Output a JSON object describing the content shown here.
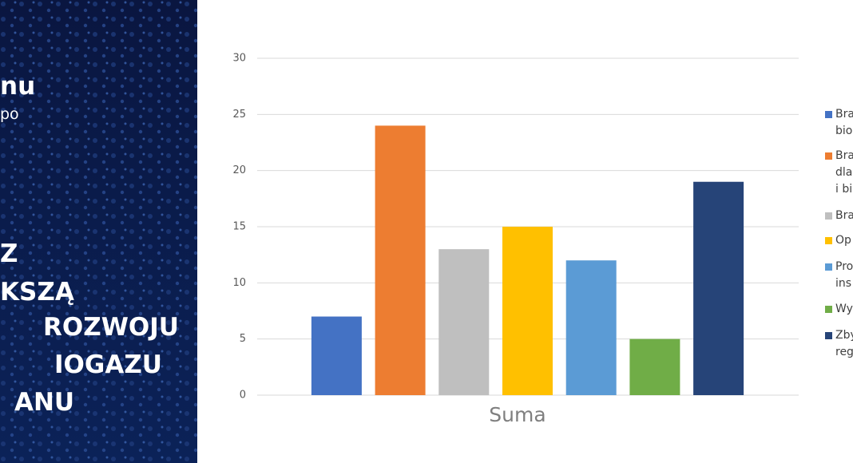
{
  "panel": {
    "lines": [
      "nu",
      "po",
      "Z",
      "KSZĄ",
      "ROZWOJU",
      "IOGAZU",
      "ANU"
    ]
  },
  "chart_data": {
    "type": "bar",
    "categories": [
      "Suma"
    ],
    "x_label": "Suma",
    "ylim": [
      0,
      30
    ],
    "yticks": [
      0,
      5,
      10,
      15,
      20,
      25,
      30
    ],
    "grid": true,
    "series": [
      {
        "name": "Bra\nbio",
        "color": "#4472c4",
        "values": [
          7
        ]
      },
      {
        "name": "Bra\ndla\ni bi",
        "color": "#ed7d31",
        "values": [
          24
        ]
      },
      {
        "name": "Bra",
        "color": "#bfbfbf",
        "values": [
          13
        ]
      },
      {
        "name": "Op",
        "color": "#ffc000",
        "values": [
          15
        ]
      },
      {
        "name": "Pro\nins",
        "color": "#5b9bd5",
        "values": [
          12
        ]
      },
      {
        "name": "Wy",
        "color": "#70ad47",
        "values": [
          5
        ]
      },
      {
        "name": "Zby\nreg",
        "color": "#264478",
        "values": [
          19
        ]
      }
    ]
  }
}
